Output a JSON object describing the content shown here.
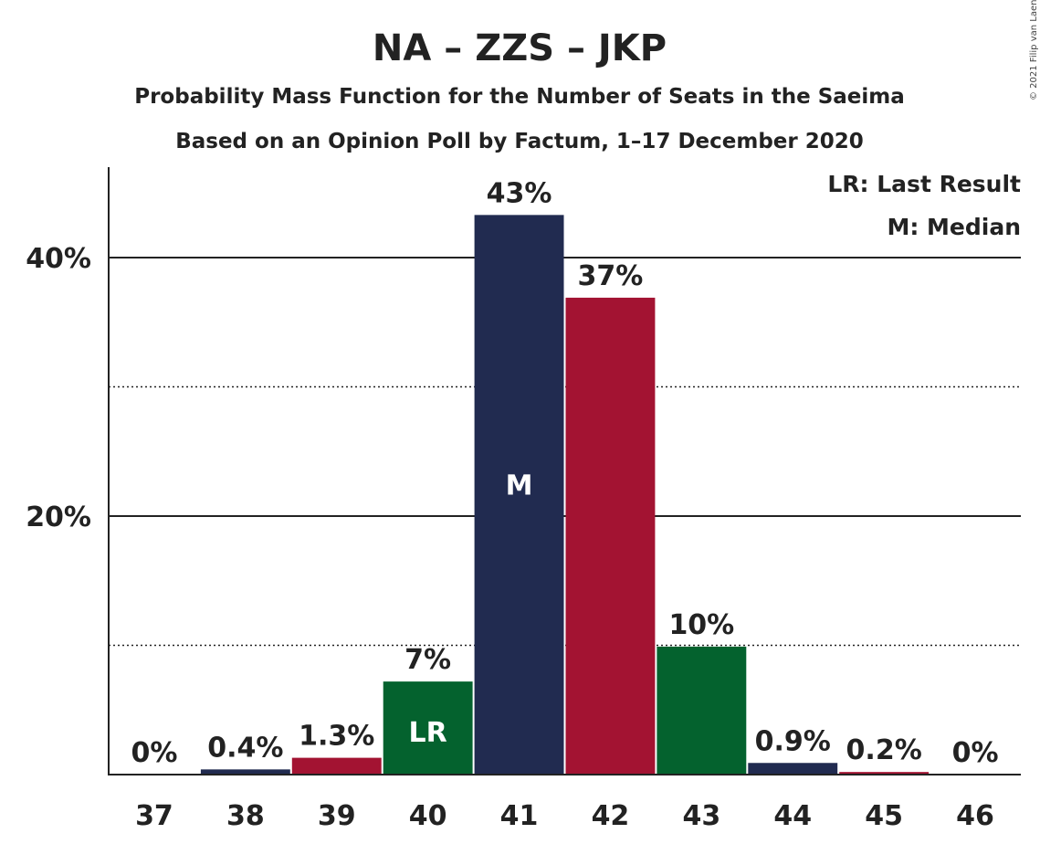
{
  "chart_data": {
    "type": "bar",
    "title": "NA – ZZS – JKP",
    "subtitle": "Probability Mass Function for the Number of Seats in the Saeima",
    "subtitle2": "Based on an Opinion Poll by Factum, 1–17 December 2020",
    "copyright": "© 2021 Filip van Laenen",
    "categories": [
      "37",
      "38",
      "39",
      "40",
      "41",
      "42",
      "43",
      "44",
      "45",
      "46"
    ],
    "values": [
      0,
      0.4,
      1.3,
      7.2,
      43.3,
      36.9,
      9.9,
      0.9,
      0.2,
      0
    ],
    "value_labels": [
      "0%",
      "0.4%",
      "1.3%",
      "7%",
      "43%",
      "37%",
      "10%",
      "0.9%",
      "0.2%",
      "0%"
    ],
    "bar_colors": [
      "#212B50",
      "#212B50",
      "#A31332",
      "#04622E",
      "#212B50",
      "#A31332",
      "#04622E",
      "#212B50",
      "#A31332",
      "#04622E"
    ],
    "yticks": [
      {
        "value": 20,
        "label": "20%"
      },
      {
        "value": 40,
        "label": "40%"
      }
    ],
    "dotted_gridlines": [
      10,
      30
    ],
    "ylim": [
      0,
      47
    ],
    "markers": [
      {
        "category": "40",
        "text": "LR"
      },
      {
        "category": "41",
        "text": "M"
      }
    ],
    "legend": [
      "LR: Last Result",
      "M: Median"
    ],
    "legend_position": "top-right"
  }
}
